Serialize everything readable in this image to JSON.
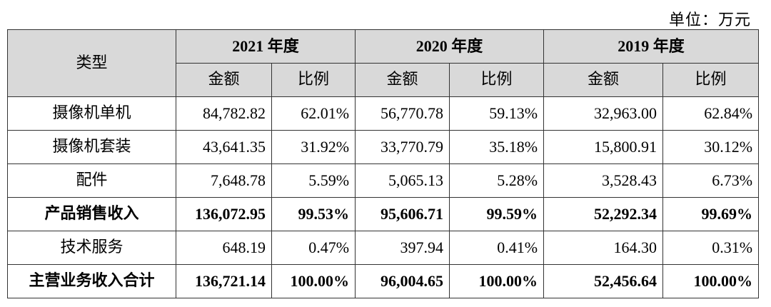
{
  "unit_label": "单位：万元",
  "header": {
    "type_label": "类型",
    "years": [
      "2021 年度",
      "2020 年度",
      "2019 年度"
    ],
    "amount_label": "金额",
    "ratio_label": "比例"
  },
  "rows": [
    {
      "label": "摄像机单机",
      "cells": [
        "84,782.82",
        "62.01%",
        "56,770.78",
        "59.13%",
        "32,963.00",
        "62.84%"
      ],
      "bold": false
    },
    {
      "label": "摄像机套装",
      "cells": [
        "43,641.35",
        "31.92%",
        "33,770.79",
        "35.18%",
        "15,800.91",
        "30.12%"
      ],
      "bold": false
    },
    {
      "label": "配件",
      "cells": [
        "7,648.78",
        "5.59%",
        "5,065.13",
        "5.28%",
        "3,528.43",
        "6.73%"
      ],
      "bold": false
    },
    {
      "label": "产品销售收入",
      "cells": [
        "136,072.95",
        "99.53%",
        "95,606.71",
        "99.59%",
        "52,292.34",
        "99.69%"
      ],
      "bold": true
    },
    {
      "label": "技术服务",
      "cells": [
        "648.19",
        "0.47%",
        "397.94",
        "0.41%",
        "164.30",
        "0.31%"
      ],
      "bold": false
    },
    {
      "label": "主营业务收入合计",
      "cells": [
        "136,721.14",
        "100.00%",
        "96,004.65",
        "100.00%",
        "52,456.64",
        "100.00%"
      ],
      "bold": true
    }
  ]
}
